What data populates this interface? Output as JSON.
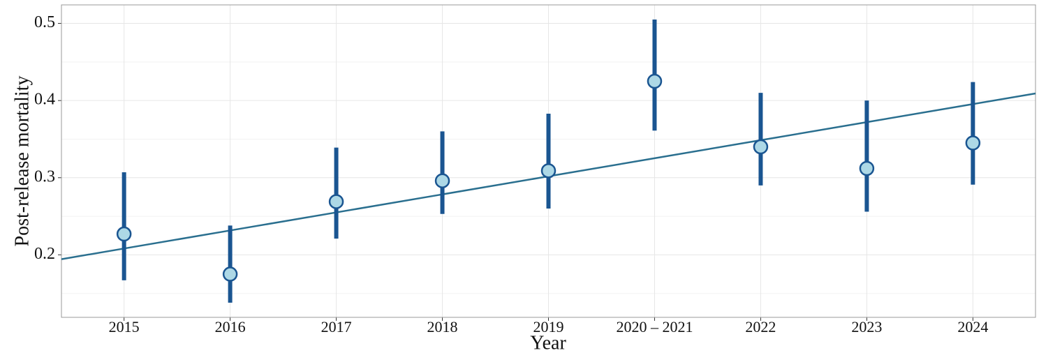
{
  "chart_data": {
    "type": "errorbar",
    "x_label": "Year",
    "y_label": "Post-release mortality",
    "categories": [
      "2015",
      "2016",
      "2017",
      "2018",
      "2019",
      "2020 – 2021",
      "2022",
      "2023",
      "2024"
    ],
    "series": [
      {
        "color": "#1a5591",
        "fill": "#add8e6",
        "values": [
          0.227,
          0.175,
          0.269,
          0.296,
          0.309,
          0.425,
          0.34,
          0.312,
          0.345
        ],
        "lower": [
          0.167,
          0.138,
          0.221,
          0.253,
          0.26,
          0.361,
          0.29,
          0.256,
          0.291
        ],
        "upper": [
          0.307,
          0.238,
          0.339,
          0.36,
          0.383,
          0.505,
          0.41,
          0.4,
          0.424
        ]
      }
    ],
    "trend": {
      "color": "#2a6f8f",
      "values": [
        0.2082,
        0.2316,
        0.255,
        0.2784,
        0.3018,
        0.3252,
        0.3486,
        0.372,
        0.3954
      ]
    },
    "ylim": [
      0.119,
      0.524
    ],
    "yticks": [
      0.2,
      0.3,
      0.4,
      0.5
    ],
    "yminor": [
      0.15,
      0.25,
      0.35,
      0.45
    ],
    "grid": true
  }
}
